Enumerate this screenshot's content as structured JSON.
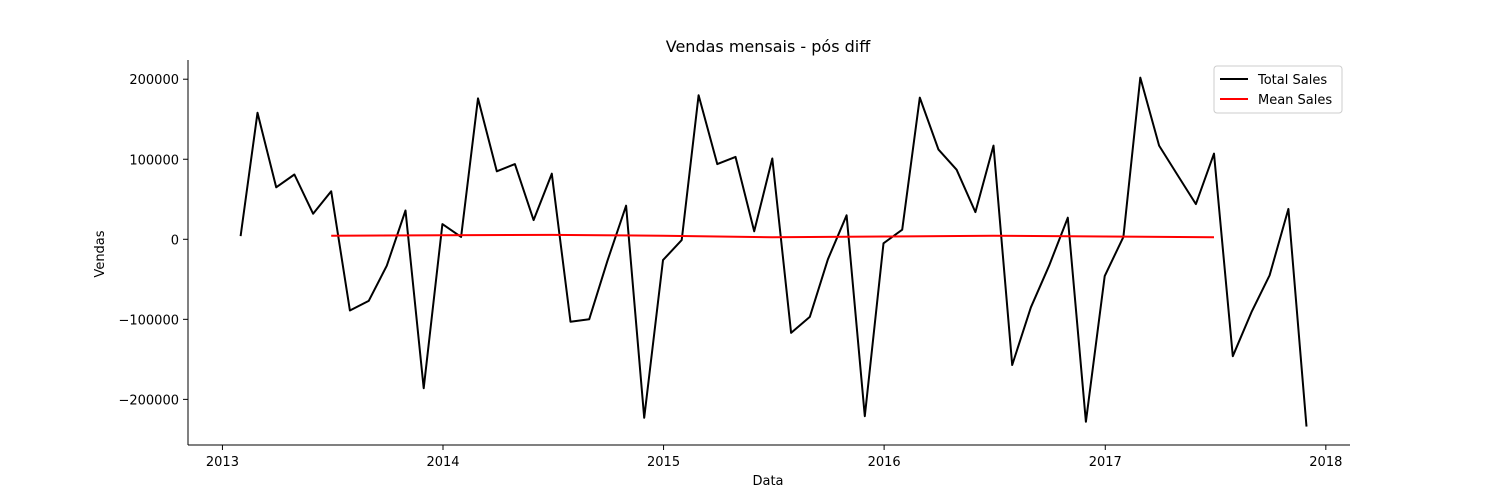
{
  "chart_data": {
    "type": "line",
    "title": "Vendas mensais - pós diff",
    "xlabel": "Data",
    "ylabel": "Vendas",
    "xlim": [
      "2012-11-05",
      "2018-02-10"
    ],
    "ylim": [
      -257000,
      224000
    ],
    "x_ticks": [
      "2013-01-01",
      "2014-01-01",
      "2015-01-01",
      "2016-01-01",
      "2017-01-01",
      "2018-01-01"
    ],
    "x_tick_labels": [
      "2013",
      "2014",
      "2015",
      "2016",
      "2017",
      "2018"
    ],
    "y_ticks": [
      -200000,
      -100000,
      0,
      100000,
      200000
    ],
    "y_tick_labels": [
      "−200000",
      "−100000",
      "0",
      "100000",
      "200000"
    ],
    "legend_position": "top-right",
    "grid": false,
    "series": [
      {
        "name": "Total Sales",
        "color": "#000000",
        "x": [
          "2013-01-31",
          "2013-02-28",
          "2013-03-31",
          "2013-04-30",
          "2013-05-31",
          "2013-06-30",
          "2013-07-31",
          "2013-08-31",
          "2013-09-30",
          "2013-10-31",
          "2013-11-30",
          "2013-12-31",
          "2014-01-31",
          "2014-02-28",
          "2014-03-31",
          "2014-04-30",
          "2014-05-31",
          "2014-06-30",
          "2014-07-31",
          "2014-08-31",
          "2014-09-30",
          "2014-10-31",
          "2014-11-30",
          "2014-12-31",
          "2015-01-31",
          "2015-02-28",
          "2015-03-31",
          "2015-04-30",
          "2015-05-31",
          "2015-06-30",
          "2015-07-31",
          "2015-08-31",
          "2015-09-30",
          "2015-10-31",
          "2015-11-30",
          "2015-12-31",
          "2016-01-31",
          "2016-02-29",
          "2016-03-31",
          "2016-04-30",
          "2016-05-31",
          "2016-06-30",
          "2016-07-31",
          "2016-08-31",
          "2016-09-30",
          "2016-10-31",
          "2016-11-30",
          "2016-12-31",
          "2017-01-31",
          "2017-02-28",
          "2017-03-31",
          "2017-04-30",
          "2017-05-31",
          "2017-06-30",
          "2017-07-31",
          "2017-08-31",
          "2017-09-30",
          "2017-10-31",
          "2017-11-30"
        ],
        "values": [
          4000,
          158000,
          65000,
          81000,
          32000,
          60000,
          -89000,
          -77000,
          -33000,
          36000,
          -186000,
          19000,
          3000,
          176000,
          85000,
          94000,
          24000,
          82000,
          -103000,
          -100000,
          -27000,
          42000,
          -223000,
          -26000,
          -1000,
          180000,
          94000,
          103000,
          10000,
          101000,
          -117000,
          -97000,
          -25000,
          30000,
          -221000,
          -5000,
          12000,
          177000,
          112000,
          87000,
          34000,
          117000,
          -157000,
          -85000,
          -33000,
          27000,
          -228000,
          -46000,
          3000,
          202000,
          117000,
          81000,
          44000,
          107000,
          -146000,
          -91000,
          -45000,
          38000,
          -234000
        ]
      },
      {
        "name": "Mean Sales",
        "color": "#ff0000",
        "x": [
          "2013-06-30",
          "2013-12-31",
          "2014-06-30",
          "2014-12-31",
          "2015-06-30",
          "2015-12-31",
          "2016-06-30",
          "2016-12-31",
          "2017-06-30"
        ],
        "values": [
          4500,
          5000,
          5500,
          4500,
          2500,
          3500,
          4500,
          3500,
          2500
        ]
      }
    ]
  }
}
